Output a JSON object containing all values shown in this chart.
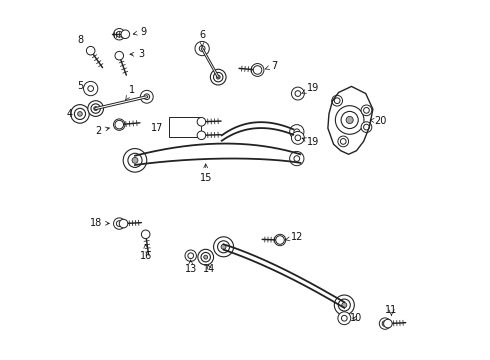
{
  "background_color": "#ffffff",
  "fig_width": 4.9,
  "fig_height": 3.6,
  "dpi": 100,
  "color": "#222222",
  "lw_main": 1.2,
  "lw_thin": 0.7
}
